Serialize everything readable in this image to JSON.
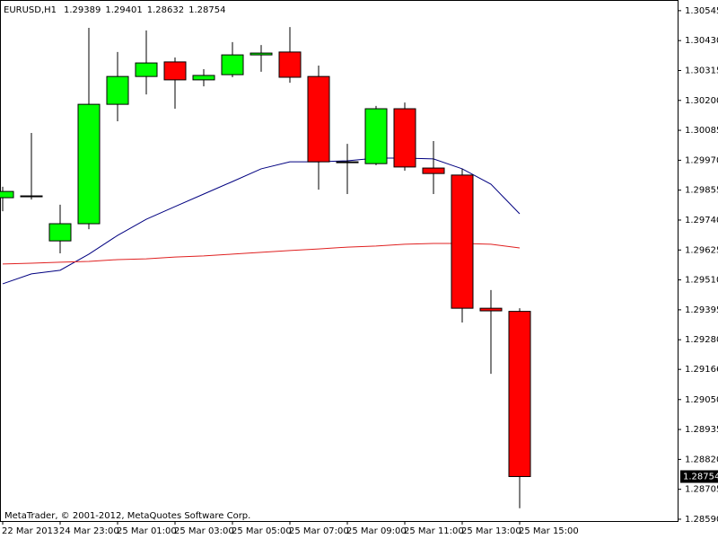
{
  "chart_data": {
    "type": "candlestick",
    "title": "EURUSD,H1",
    "footer": "MetaTrader, © 2001-2012, MetaQuotes Software Corp.",
    "categories": [
      "22 Mar 2013",
      null,
      "24 Mar 23:00",
      null,
      "25 Mar 01:00",
      null,
      "25 Mar 03:00",
      null,
      "25 Mar 05:00",
      null,
      "25 Mar 07:00",
      null,
      "25 Mar 09:00",
      null,
      "25 Mar 11:00",
      null,
      "25 Mar 13:00",
      null,
      "25 Mar 15:00"
    ],
    "open": [
      1.29826,
      1.29833,
      1.2966,
      1.29726,
      1.30185,
      1.30292,
      1.30348,
      1.30279,
      1.30299,
      1.30375,
      1.30386,
      1.30292,
      1.29964,
      1.29957,
      1.30168,
      1.2994,
      1.29913,
      1.29401,
      1.29389
    ],
    "high": [
      1.29868,
      1.30075,
      1.29799,
      1.30479,
      1.30386,
      1.30469,
      1.30365,
      1.3032,
      1.30424,
      1.30413,
      1.30482,
      1.30334,
      1.30033,
      1.30179,
      1.30192,
      1.30044,
      1.29937,
      1.29471,
      1.29401
    ],
    "low": [
      1.29774,
      1.29819,
      1.29612,
      1.29705,
      1.3012,
      1.30223,
      1.30168,
      1.30254,
      1.30289,
      1.3031,
      1.30268,
      1.29857,
      1.2984,
      1.29951,
      1.2993,
      1.2984,
      1.29346,
      1.29149,
      1.28632
    ],
    "close": [
      1.2985,
      1.29833,
      1.29726,
      1.30185,
      1.30292,
      1.30344,
      1.30279,
      1.30296,
      1.30375,
      1.30382,
      1.30289,
      1.29964,
      1.29961,
      1.30168,
      1.29944,
      1.29919,
      1.29401,
      1.29391,
      1.28754
    ],
    "up_color": "#00ff00",
    "down_color": "#ff0000",
    "lines": [
      {
        "color": "#000080",
        "values": [
          1.29495,
          1.29533,
          1.29547,
          1.29609,
          1.29681,
          1.29743,
          1.29792,
          1.2984,
          1.29888,
          1.29937,
          1.29964,
          1.29964,
          1.29968,
          1.29978,
          1.29978,
          1.29975,
          1.29937,
          1.29878,
          1.29764
        ]
      },
      {
        "color": "#e02020",
        "values": [
          1.29571,
          1.29574,
          1.29578,
          1.29581,
          1.29588,
          1.29591,
          1.29598,
          1.29602,
          1.29609,
          1.29616,
          1.29623,
          1.29629,
          1.29636,
          1.2964,
          1.29647,
          1.2965,
          1.2965,
          1.29647,
          1.29633
        ]
      }
    ],
    "ylim": [
      1.28583,
      1.30586
    ],
    "yticks": [
      1.30545,
      {
        "value": 1.3043,
        "label": "1.30430"
      },
      1.30315,
      {
        "value": 1.302,
        "label": "1.30200"
      },
      1.30085,
      {
        "value": 1.2997,
        "label": "1.29970"
      },
      1.29855,
      {
        "value": 1.2974,
        "label": "1.29740"
      },
      1.29625,
      {
        "value": 1.2951,
        "label": "1.29510"
      },
      1.29395,
      {
        "value": 1.2928,
        "label": "1.29280"
      },
      1.29166,
      {
        "value": 1.2905,
        "label": "1.29050"
      },
      1.28935,
      {
        "value": 1.2882,
        "label": "1.28820"
      },
      1.28705,
      {
        "value": 1.2859,
        "label": "1.28590"
      }
    ]
  }
}
